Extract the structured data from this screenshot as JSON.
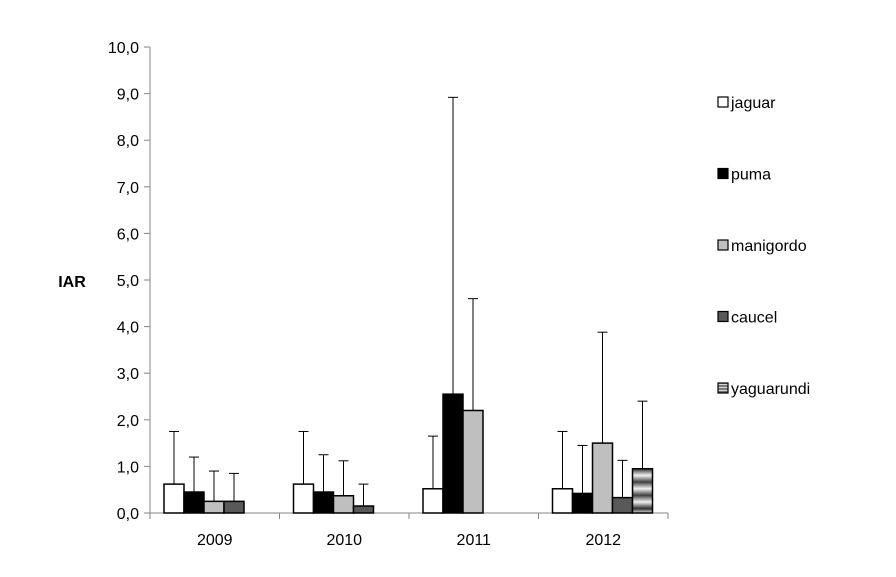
{
  "chart_data": {
    "type": "bar",
    "ylabel": "IAR",
    "ylim": [
      0,
      10
    ],
    "yticks": [
      "0,0",
      "1,0",
      "2,0",
      "3,0",
      "4,0",
      "5,0",
      "6,0",
      "7,0",
      "8,0",
      "9,0",
      "10,0"
    ],
    "categories": [
      "2009",
      "2010",
      "2011",
      "2012"
    ],
    "legend_position": "right",
    "series": [
      {
        "name": "jaguar",
        "fill": "#ffffff",
        "values": [
          0.62,
          0.62,
          0.52,
          0.52
        ],
        "err_upper": [
          1.75,
          1.75,
          1.65,
          1.75
        ]
      },
      {
        "name": "puma",
        "fill": "#000000",
        "values": [
          0.45,
          0.45,
          2.55,
          0.42
        ],
        "err_upper": [
          1.2,
          1.25,
          8.92,
          1.45
        ]
      },
      {
        "name": "manigordo",
        "fill": "#bfbfbf",
        "values": [
          0.25,
          0.37,
          2.2,
          1.5
        ],
        "err_upper": [
          0.9,
          1.12,
          4.6,
          3.88
        ]
      },
      {
        "name": "caucel",
        "fill": "#595959",
        "values": [
          0.25,
          0.15,
          null,
          0.33
        ],
        "err_upper": [
          0.85,
          0.62,
          null,
          1.13
        ]
      },
      {
        "name": "yaguarundi",
        "fill": "pattern",
        "values": [
          null,
          null,
          null,
          0.95
        ],
        "err_upper": [
          null,
          null,
          null,
          2.4
        ]
      }
    ]
  }
}
